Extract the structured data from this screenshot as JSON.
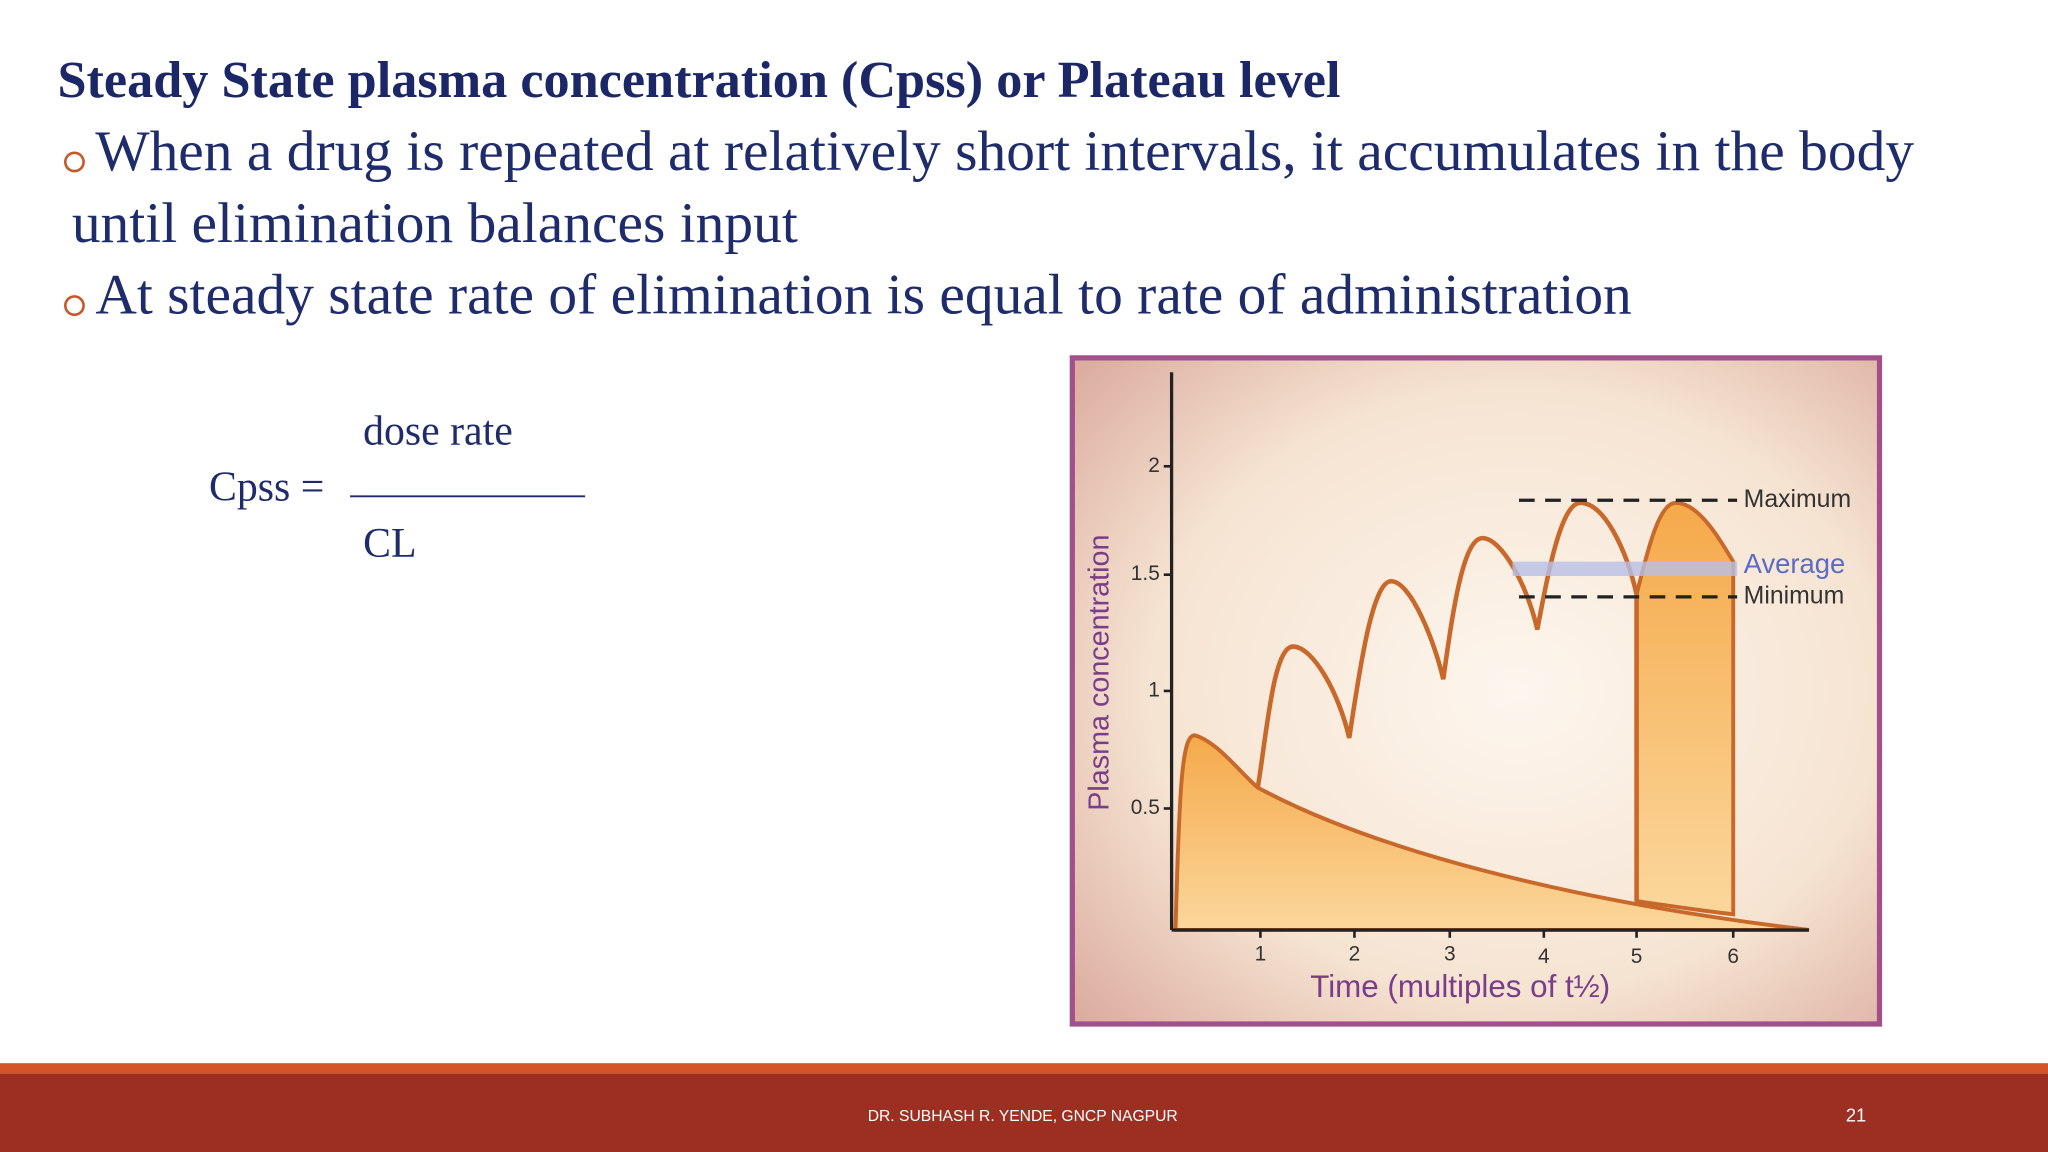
{
  "slide": {
    "title": "Steady State plasma concentration (Cpss) or Plateau level",
    "bullets": [
      [
        "When a drug is repeated at relatively short intervals, it accumulates in the body",
        "until elimination balances input"
      ],
      [
        "At steady state rate of elimination is equal to rate of administration"
      ]
    ],
    "formula": {
      "lhs": "Cpss =",
      "numerator": "dose rate",
      "denominator": "CL"
    },
    "figure": {
      "y_label": "Plasma concentration",
      "x_label": "Time (multiples of t½)",
      "yticks": [
        "2",
        "1.5",
        "1",
        "0.5"
      ],
      "xticks": [
        "1",
        "2",
        "3",
        "4",
        "5",
        "6"
      ],
      "annotations": {
        "maximum": "Maximum",
        "average": "Average",
        "minimum": "Minimum"
      }
    },
    "footer": {
      "text": "DR. SUBHASH R. YENDE, GNCP NAGPUR",
      "page": 21
    }
  }
}
